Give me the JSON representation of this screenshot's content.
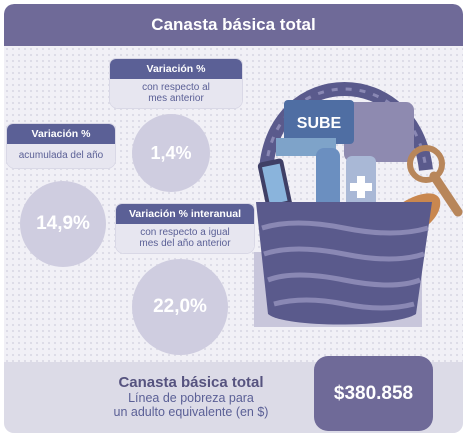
{
  "header": {
    "title": "Canasta básica total"
  },
  "monthly": {
    "title": "Variación %",
    "subtitle_line1": "con respecto al",
    "subtitle_line2": "mes anterior",
    "value": "1,4%"
  },
  "accumulated": {
    "title": "Variación %",
    "subtitle": "acumulada del año",
    "value": "14,9%"
  },
  "interannual": {
    "title": "Variación % interanual",
    "subtitle_line1": "con respecto a igual",
    "subtitle_line2": "mes del año anterior",
    "value": "22,0%"
  },
  "illustration": {
    "card_label": "SUBE"
  },
  "summary": {
    "title": "Canasta básica total",
    "line1": "Línea de pobreza para",
    "line2": "un adulto equivalente (en $)",
    "value": "$380.858"
  },
  "colors": {
    "header": "#6f6a98",
    "tag_title": "#5b6096",
    "circle": "#cfcde0",
    "basket": "#5a5a8c"
  }
}
